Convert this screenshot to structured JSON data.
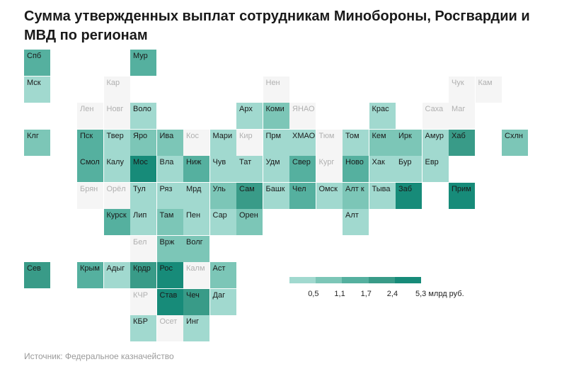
{
  "title": "Сумма утвержденных выплат сотрудникам Минобороны, Росгвардии и МВД по регионам",
  "source": "Источник: Федеральное казначейство",
  "colors": {
    "na": "#f5f5f5",
    "levels": [
      "#a1d9cf",
      "#7cc6b7",
      "#55b09f",
      "#399b88",
      "#178b79"
    ],
    "text_na": "#b0b0b0",
    "text": "#1a1a1a"
  },
  "legend": {
    "labels": [
      "0,5",
      "1,1",
      "1,7",
      "2,4",
      "5,3 млрд руб."
    ]
  },
  "map_data": {
    "unit": "level 0 = no data, 1–5 = bins from the legend",
    "tiles": [
      {
        "name": "Спб",
        "col": 0,
        "row": 0,
        "level": 3
      },
      {
        "name": "Мур",
        "col": 4,
        "row": 0,
        "level": 3
      },
      {
        "name": "Мск",
        "col": 0,
        "row": 1,
        "level": 1
      },
      {
        "name": "Кар",
        "col": 3,
        "row": 1,
        "level": 0
      },
      {
        "name": "Нен",
        "col": 9,
        "row": 1,
        "level": 0
      },
      {
        "name": "Чук",
        "col": 16,
        "row": 1,
        "level": 0
      },
      {
        "name": "Кам",
        "col": 17,
        "row": 1,
        "level": 0
      },
      {
        "name": "Лен",
        "col": 2,
        "row": 2,
        "level": 0
      },
      {
        "name": "Новг",
        "col": 3,
        "row": 2,
        "level": 0
      },
      {
        "name": "Воло",
        "col": 4,
        "row": 2,
        "level": 1
      },
      {
        "name": "Арх",
        "col": 8,
        "row": 2,
        "level": 1
      },
      {
        "name": "Коми",
        "col": 9,
        "row": 2,
        "level": 2
      },
      {
        "name": "ЯНАО",
        "col": 10,
        "row": 2,
        "level": 0
      },
      {
        "name": "Крас",
        "col": 13,
        "row": 2,
        "level": 1
      },
      {
        "name": "Саха",
        "col": 15,
        "row": 2,
        "level": 0
      },
      {
        "name": "Маг",
        "col": 16,
        "row": 2,
        "level": 0
      },
      {
        "name": "Клг",
        "col": 0,
        "row": 3,
        "level": 2
      },
      {
        "name": "Пск",
        "col": 2,
        "row": 3,
        "level": 3
      },
      {
        "name": "Твер",
        "col": 3,
        "row": 3,
        "level": 1
      },
      {
        "name": "Яро",
        "col": 4,
        "row": 3,
        "level": 2
      },
      {
        "name": "Ива",
        "col": 5,
        "row": 3,
        "level": 2
      },
      {
        "name": "Кос",
        "col": 6,
        "row": 3,
        "level": 0
      },
      {
        "name": "Мари",
        "col": 7,
        "row": 3,
        "level": 1
      },
      {
        "name": "Кир",
        "col": 8,
        "row": 3,
        "level": 0
      },
      {
        "name": "Прм",
        "col": 9,
        "row": 3,
        "level": 1
      },
      {
        "name": "ХМАО",
        "col": 10,
        "row": 3,
        "level": 1
      },
      {
        "name": "Тюм",
        "col": 11,
        "row": 3,
        "level": 0
      },
      {
        "name": "Том",
        "col": 12,
        "row": 3,
        "level": 1
      },
      {
        "name": "Кем",
        "col": 13,
        "row": 3,
        "level": 2
      },
      {
        "name": "Ирк",
        "col": 14,
        "row": 3,
        "level": 2
      },
      {
        "name": "Амур",
        "col": 15,
        "row": 3,
        "level": 1
      },
      {
        "name": "Хаб",
        "col": 16,
        "row": 3,
        "level": 4
      },
      {
        "name": "Схлн",
        "col": 18,
        "row": 3,
        "level": 2
      },
      {
        "name": "Смол",
        "col": 2,
        "row": 4,
        "level": 3
      },
      {
        "name": "Калу",
        "col": 3,
        "row": 4,
        "level": 1
      },
      {
        "name": "Мос",
        "col": 4,
        "row": 4,
        "level": 5
      },
      {
        "name": "Вла",
        "col": 5,
        "row": 4,
        "level": 1
      },
      {
        "name": "Ниж",
        "col": 6,
        "row": 4,
        "level": 3
      },
      {
        "name": "Чув",
        "col": 7,
        "row": 4,
        "level": 1
      },
      {
        "name": "Тат",
        "col": 8,
        "row": 4,
        "level": 1
      },
      {
        "name": "Удм",
        "col": 9,
        "row": 4,
        "level": 1
      },
      {
        "name": "Свер",
        "col": 10,
        "row": 4,
        "level": 3
      },
      {
        "name": "Кург",
        "col": 11,
        "row": 4,
        "level": 0
      },
      {
        "name": "Ново",
        "col": 12,
        "row": 4,
        "level": 3
      },
      {
        "name": "Хак",
        "col": 13,
        "row": 4,
        "level": 1
      },
      {
        "name": "Бур",
        "col": 14,
        "row": 4,
        "level": 1
      },
      {
        "name": "Евр",
        "col": 15,
        "row": 4,
        "level": 1
      },
      {
        "name": "Брян",
        "col": 2,
        "row": 5,
        "level": 0
      },
      {
        "name": "Орёл",
        "col": 3,
        "row": 5,
        "level": 0
      },
      {
        "name": "Тул",
        "col": 4,
        "row": 5,
        "level": 1
      },
      {
        "name": "Ряз",
        "col": 5,
        "row": 5,
        "level": 1
      },
      {
        "name": "Мрд",
        "col": 6,
        "row": 5,
        "level": 1
      },
      {
        "name": "Уль",
        "col": 7,
        "row": 5,
        "level": 2
      },
      {
        "name": "Сам",
        "col": 8,
        "row": 5,
        "level": 4
      },
      {
        "name": "Башк",
        "col": 9,
        "row": 5,
        "level": 1
      },
      {
        "name": "Чел",
        "col": 10,
        "row": 5,
        "level": 3
      },
      {
        "name": "Омск",
        "col": 11,
        "row": 5,
        "level": 1
      },
      {
        "name": "Алт к",
        "col": 12,
        "row": 5,
        "level": 2
      },
      {
        "name": "Тыва",
        "col": 13,
        "row": 5,
        "level": 1
      },
      {
        "name": "Заб",
        "col": 14,
        "row": 5,
        "level": 5
      },
      {
        "name": "Прим",
        "col": 16,
        "row": 5,
        "level": 5
      },
      {
        "name": "Курск",
        "col": 3,
        "row": 6,
        "level": 3
      },
      {
        "name": "Лип",
        "col": 4,
        "row": 6,
        "level": 1
      },
      {
        "name": "Там",
        "col": 5,
        "row": 6,
        "level": 2
      },
      {
        "name": "Пен",
        "col": 6,
        "row": 6,
        "level": 1
      },
      {
        "name": "Сар",
        "col": 7,
        "row": 6,
        "level": 1
      },
      {
        "name": "Орен",
        "col": 8,
        "row": 6,
        "level": 2
      },
      {
        "name": "Алт",
        "col": 12,
        "row": 6,
        "level": 1
      },
      {
        "name": "Бел",
        "col": 4,
        "row": 7,
        "level": 0
      },
      {
        "name": "Врж",
        "col": 5,
        "row": 7,
        "level": 2
      },
      {
        "name": "Волг",
        "col": 6,
        "row": 7,
        "level": 2
      },
      {
        "name": "Сев",
        "col": 0,
        "row": 8,
        "level": 4
      },
      {
        "name": "Крым",
        "col": 2,
        "row": 8,
        "level": 3
      },
      {
        "name": "Адыг",
        "col": 3,
        "row": 8,
        "level": 1
      },
      {
        "name": "Крдр",
        "col": 4,
        "row": 8,
        "level": 4
      },
      {
        "name": "Рос",
        "col": 5,
        "row": 8,
        "level": 5
      },
      {
        "name": "Калм",
        "col": 6,
        "row": 8,
        "level": 0
      },
      {
        "name": "Аст",
        "col": 7,
        "row": 8,
        "level": 2
      },
      {
        "name": "КЧР",
        "col": 4,
        "row": 9,
        "level": 0
      },
      {
        "name": "Став",
        "col": 5,
        "row": 9,
        "level": 5
      },
      {
        "name": "Чеч",
        "col": 6,
        "row": 9,
        "level": 4
      },
      {
        "name": "Даг",
        "col": 7,
        "row": 9,
        "level": 1
      },
      {
        "name": "КБР",
        "col": 4,
        "row": 10,
        "level": 1
      },
      {
        "name": "Осет",
        "col": 5,
        "row": 10,
        "level": 0
      },
      {
        "name": "Инг",
        "col": 6,
        "row": 10,
        "level": 1
      }
    ]
  }
}
